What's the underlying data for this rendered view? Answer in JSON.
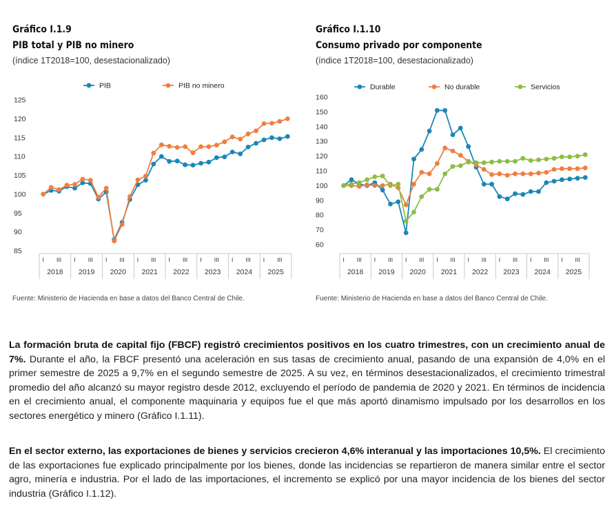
{
  "left_chart": {
    "label": "Gráfico I.1.9",
    "title": "PIB total y PIB no minero",
    "subtitle": "(índice 1T2018=100, desestacionalizado)",
    "source": "Fuente: Ministerio de Hacienda en base a datos del Banco Central de Chile."
  },
  "right_chart": {
    "label": "Gráfico I.1.10",
    "title": "Consumo privado por componente",
    "subtitle": "(índice 1T2018=100, desestacionalizado)",
    "source": "Fuente: Ministerio de Hacienda en base a datos del Banco Central de Chile."
  },
  "chart_data": [
    {
      "type": "line",
      "title": "PIB total y PIB no minero",
      "ylim": [
        85,
        125
      ],
      "yticks": [
        85,
        90,
        95,
        100,
        105,
        110,
        115,
        120,
        125
      ],
      "quarter_labels": [
        "I",
        "III"
      ],
      "years": [
        "2018",
        "2019",
        "2020",
        "2021",
        "2022",
        "2023",
        "2024",
        "2025"
      ],
      "legend_position": "top-center",
      "grid": false,
      "series": [
        {
          "name": "PIB",
          "color": "#1a86b8",
          "values": [
            100,
            101,
            100.8,
            102,
            101.6,
            103,
            102.8,
            98.7,
            100.6,
            88,
            92.5,
            98.6,
            102.5,
            103.7,
            108,
            110,
            108.7,
            108.8,
            107.8,
            107.7,
            108.2,
            108.5,
            109.7,
            109.9,
            111.2,
            110.7,
            112.5,
            113.5,
            114.4,
            115,
            114.7,
            115.3
          ]
        },
        {
          "name": "PIB no minero",
          "color": "#ef7f3f",
          "values": [
            100,
            101.8,
            101.2,
            102.4,
            102.6,
            104,
            103.7,
            99.2,
            101.6,
            87.6,
            92,
            99.4,
            103.8,
            104.8,
            110.9,
            113.1,
            112.7,
            112.4,
            112.6,
            111,
            112.6,
            112.6,
            113,
            113.9,
            115.2,
            114.6,
            116,
            116.8,
            118.7,
            118.8,
            119.3,
            120
          ]
        }
      ]
    },
    {
      "type": "line",
      "title": "Consumo privado por componente",
      "ylim": [
        60,
        160
      ],
      "yticks": [
        60,
        70,
        80,
        90,
        100,
        110,
        120,
        130,
        140,
        150,
        160
      ],
      "quarter_labels": [
        "I",
        "III"
      ],
      "years": [
        "2018",
        "2019",
        "2020",
        "2021",
        "2022",
        "2023",
        "2024",
        "2025"
      ],
      "legend_position": "top-center",
      "grid": false,
      "series": [
        {
          "name": "Durable",
          "color": "#1a86b8",
          "values": [
            100,
            104,
            101,
            100,
            102,
            97,
            87.5,
            89,
            68,
            118,
            124.5,
            137,
            151,
            151,
            134.5,
            139,
            126.5,
            112.5,
            101,
            101,
            92.5,
            91,
            94.5,
            94,
            96,
            96,
            102,
            103,
            104,
            104.5,
            105,
            105.5
          ]
        },
        {
          "name": "No durable",
          "color": "#ef7f3f",
          "values": [
            100,
            100,
            99.5,
            100.5,
            100,
            100,
            101,
            98.5,
            87,
            101,
            109,
            108,
            115,
            125.5,
            123.5,
            120.5,
            116.5,
            114,
            111,
            107.5,
            108,
            107,
            108,
            108,
            108,
            108.5,
            109,
            111,
            111.5,
            111.5,
            111.5,
            112
          ]
        },
        {
          "name": "Servicios",
          "color": "#8cbd44",
          "values": [
            100,
            101,
            102,
            104,
            106,
            106.5,
            100,
            101,
            76,
            82,
            92.5,
            97.5,
            97.5,
            108,
            113,
            113.5,
            116,
            115.5,
            115.5,
            116,
            116.5,
            116.5,
            116.5,
            118.5,
            117,
            117.5,
            118,
            118.5,
            119.5,
            119.5,
            120,
            121
          ]
        }
      ]
    }
  ],
  "text": {
    "p1_bold": "La formación bruta de capital fijo (FBCF) registró crecimientos positivos en los cuatro trimestres, con un crecimiento anual de 7%.",
    "p1_rest": " Durante el año, la FBCF presentó una aceleración en sus tasas de crecimiento anual, pasando de una expansión de 4,0% en el primer semestre de 2025 a 9,7% en el segundo semestre de 2025. A su vez, en términos desestacionalizados, el crecimiento trimestral promedio del año alcanzó su mayor registro desde 2012, excluyendo el período de pandemia de 2020 y 2021. En términos de incidencia en el crecimiento anual, el componente maquinaria y equipos fue el que más aportó dinamismo impulsado por los desarrollos en los sectores energético y minero (Gráfico I.1.11).",
    "p2_bold": "En el sector externo, las exportaciones de bienes y servicios crecieron 4,6% interanual y las importaciones 10,5%.",
    "p2_rest": " El crecimiento de las exportaciones fue explicado principalmente por los bienes, donde las incidencias se repartieron de manera similar entre el sector agro, minería e industria. Por el lado de las importaciones, el incremento se explicó por una mayor incidencia de los bienes del sector industria (Gráfico I.1.12)."
  }
}
